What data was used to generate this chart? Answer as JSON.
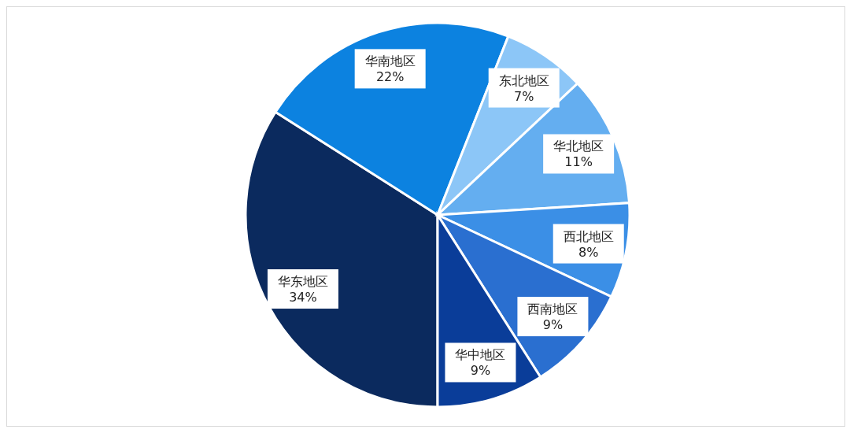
{
  "chart_data": {
    "type": "pie",
    "categories": [
      "华东地区",
      "华南地区",
      "东北地区",
      "华北地区",
      "西北地区",
      "西南地区",
      "华中地区"
    ],
    "values": [
      34,
      22,
      7,
      11,
      8,
      9,
      9
    ],
    "colors": [
      "#0b2a5e",
      "#0c82e0",
      "#8cc6f7",
      "#64aef0",
      "#3b8fe6",
      "#2a6fd0",
      "#0a3d99"
    ],
    "value_labels": [
      "34%",
      "22%",
      "7%",
      "11%",
      "8%",
      "9%",
      "9%"
    ]
  }
}
